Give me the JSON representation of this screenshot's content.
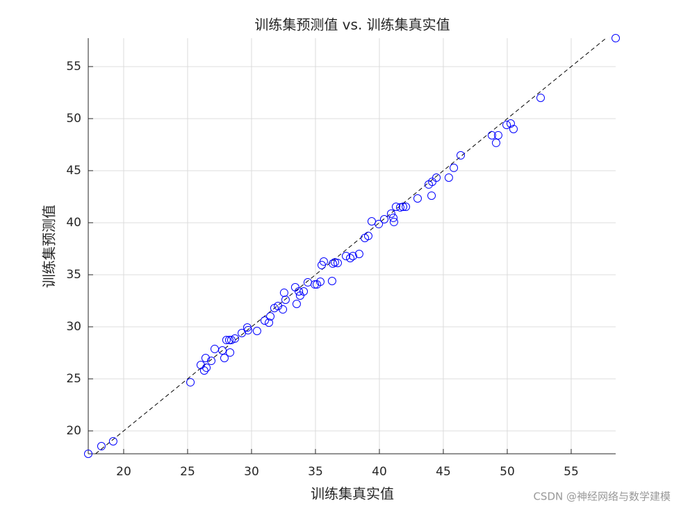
{
  "chart_data": {
    "type": "scatter",
    "title": "训练集预测值 vs. 训练集真实值",
    "x_label": "训练集真实值",
    "y_label": "训练集预测值",
    "x": [
      17.23,
      18.26,
      19.18,
      25.22,
      26.03,
      26.41,
      26.3,
      26.47,
      26.85,
      27.12,
      27.72,
      27.88,
      28.04,
      28.26,
      28.32,
      28.42,
      28.7,
      29.24,
      29.67,
      29.73,
      30.43,
      31.03,
      31.36,
      31.47,
      31.79,
      32.07,
      32.45,
      32.55,
      32.66,
      33.42,
      33.53,
      33.7,
      33.8,
      34.08,
      34.4,
      34.95,
      35.11,
      35.38,
      35.49,
      35.65,
      36.3,
      36.36,
      36.52,
      36.74,
      37.39,
      37.72,
      37.93,
      38.42,
      38.86,
      39.13,
      39.4,
      39.95,
      40.38,
      40.92,
      41.09,
      41.14,
      41.3,
      41.63,
      41.85,
      42.07,
      42.99,
      43.86,
      44.08,
      44.13,
      44.46,
      45.43,
      45.82,
      46.36,
      48.8,
      49.13,
      49.29,
      49.95,
      50.27,
      50.49,
      52.61,
      58.48
    ],
    "values": [
      17.8,
      18.53,
      19.0,
      24.67,
      26.33,
      27.0,
      25.8,
      26.07,
      26.73,
      27.87,
      27.73,
      27.0,
      28.73,
      28.73,
      27.53,
      28.73,
      28.87,
      29.4,
      29.93,
      29.67,
      29.6,
      30.6,
      30.4,
      31.0,
      31.8,
      32.0,
      31.67,
      33.27,
      32.6,
      33.8,
      32.2,
      33.4,
      33.0,
      33.4,
      34.27,
      34.07,
      34.07,
      34.33,
      35.93,
      36.27,
      34.4,
      36.07,
      36.2,
      36.13,
      36.8,
      36.6,
      36.8,
      37.0,
      38.53,
      38.73,
      40.13,
      39.87,
      40.33,
      40.87,
      40.47,
      40.07,
      41.53,
      41.47,
      41.53,
      41.53,
      42.33,
      43.67,
      42.6,
      43.93,
      44.33,
      44.33,
      45.27,
      46.47,
      48.4,
      47.67,
      48.4,
      49.4,
      49.53,
      49.0,
      52.0,
      57.73
    ],
    "color": "#0000ff",
    "xlim": [
      17.23,
      58.48
    ],
    "ylim": [
      17.8,
      57.73
    ],
    "xticks": [
      20,
      25,
      30,
      35,
      40,
      45,
      50,
      55
    ],
    "yticks": [
      20,
      25,
      30,
      35,
      40,
      45,
      50,
      55
    ],
    "grid": true
  },
  "watermark": "CSDN @神经网络与数学建模"
}
